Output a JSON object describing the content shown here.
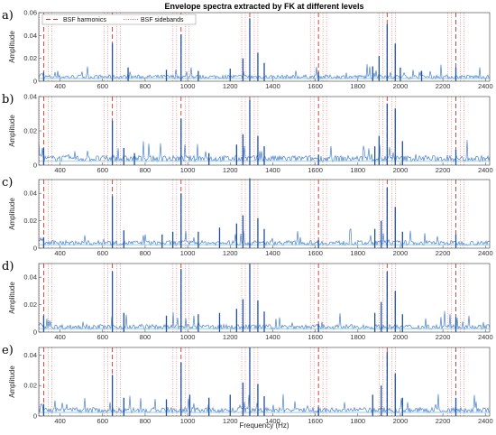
{
  "chart_data": {
    "type": "line",
    "title": "Envelope spectra extracted by FK at different levels",
    "xlabel": "Frequency (Hz)",
    "ylabel": "Amplitude",
    "xlim": [
      300,
      2420
    ],
    "x_ticks": [
      "400",
      "600",
      "800",
      "1000",
      "1200",
      "1400",
      "1600",
      "1800",
      "2000",
      "2200",
      "2400"
    ],
    "legend": {
      "placement": "top-left",
      "entries": [
        {
          "name": "BSF harmonics",
          "style": "dashed",
          "color": "#d73027"
        },
        {
          "name": "BSF sidebands",
          "style": "dotted",
          "color": "#d73027"
        }
      ]
    },
    "bsf_harmonics": [
      323,
      646,
      969,
      1292,
      1615,
      1938,
      2261
    ],
    "bsf_sidebands": [
      285,
      302,
      344,
      361,
      608,
      625,
      667,
      684,
      931,
      948,
      990,
      1007,
      1254,
      1271,
      1313,
      1330,
      1577,
      1594,
      1636,
      1653,
      1900,
      1917,
      1959,
      1976,
      2223,
      2240,
      2282,
      2299
    ],
    "spectrum_color": "#2b6cc4",
    "panels": [
      {
        "label": "a)",
        "ylim": [
          0,
          0.06
        ],
        "y_ticks": [
          "0",
          "0.02",
          "0.04",
          "0.06"
        ],
        "noise_floor": 0.004,
        "peaks": [
          [
            323,
            0.008
          ],
          [
            646,
            0.033
          ],
          [
            720,
            0.012
          ],
          [
            900,
            0.01
          ],
          [
            969,
            0.041
          ],
          [
            1050,
            0.009
          ],
          [
            1200,
            0.011
          ],
          [
            1260,
            0.02
          ],
          [
            1292,
            0.055
          ],
          [
            1330,
            0.025
          ],
          [
            1360,
            0.016
          ],
          [
            1615,
            0.008
          ],
          [
            1870,
            0.013
          ],
          [
            1900,
            0.022
          ],
          [
            1938,
            0.05
          ],
          [
            1976,
            0.033
          ],
          [
            2000,
            0.012
          ],
          [
            2100,
            0.009
          ],
          [
            2261,
            0.012
          ]
        ]
      },
      {
        "label": "b)",
        "ylim": [
          0,
          0.04
        ],
        "y_ticks": [
          "0",
          "0.02",
          "0.04"
        ],
        "noise_floor": 0.004,
        "peaks": [
          [
            323,
            0.01
          ],
          [
            646,
            0.026
          ],
          [
            700,
            0.01
          ],
          [
            750,
            0.007
          ],
          [
            969,
            0.027
          ],
          [
            1100,
            0.007
          ],
          [
            1230,
            0.012
          ],
          [
            1260,
            0.018
          ],
          [
            1292,
            0.038
          ],
          [
            1330,
            0.017
          ],
          [
            1360,
            0.011
          ],
          [
            1615,
            0.006
          ],
          [
            1880,
            0.011
          ],
          [
            1900,
            0.017
          ],
          [
            1938,
            0.036
          ],
          [
            1976,
            0.033
          ],
          [
            2010,
            0.014
          ],
          [
            2261,
            0.009
          ]
        ]
      },
      {
        "label": "c)",
        "ylim": [
          0,
          0.05
        ],
        "y_ticks": [
          "0",
          "0.02",
          "0.04"
        ],
        "noise_floor": 0.004,
        "peaks": [
          [
            323,
            0.008
          ],
          [
            646,
            0.038
          ],
          [
            700,
            0.013
          ],
          [
            880,
            0.01
          ],
          [
            930,
            0.012
          ],
          [
            969,
            0.04
          ],
          [
            1050,
            0.012
          ],
          [
            1150,
            0.015
          ],
          [
            1230,
            0.018
          ],
          [
            1260,
            0.024
          ],
          [
            1292,
            0.051
          ],
          [
            1330,
            0.022
          ],
          [
            1360,
            0.014
          ],
          [
            1615,
            0.006
          ],
          [
            1880,
            0.014
          ],
          [
            1910,
            0.02
          ],
          [
            1938,
            0.044
          ],
          [
            1976,
            0.03
          ],
          [
            2010,
            0.012
          ],
          [
            2261,
            0.01
          ]
        ]
      },
      {
        "label": "d)",
        "ylim": [
          0,
          0.05
        ],
        "y_ticks": [
          "0",
          "0.02",
          "0.04"
        ],
        "noise_floor": 0.004,
        "peaks": [
          [
            323,
            0.012
          ],
          [
            646,
            0.044
          ],
          [
            700,
            0.014
          ],
          [
            900,
            0.012
          ],
          [
            969,
            0.046
          ],
          [
            1050,
            0.013
          ],
          [
            1150,
            0.014
          ],
          [
            1230,
            0.017
          ],
          [
            1260,
            0.024
          ],
          [
            1292,
            0.05
          ],
          [
            1330,
            0.023
          ],
          [
            1360,
            0.015
          ],
          [
            1615,
            0.006
          ],
          [
            1880,
            0.014
          ],
          [
            1910,
            0.022
          ],
          [
            1938,
            0.044
          ],
          [
            1976,
            0.03
          ],
          [
            2010,
            0.013
          ],
          [
            2261,
            0.011
          ]
        ]
      },
      {
        "label": "e)",
        "ylim": [
          0,
          0.045
        ],
        "y_ticks": [
          "0",
          "0.02",
          "0.04"
        ],
        "noise_floor": 0.004,
        "peaks": [
          [
            323,
            0.008
          ],
          [
            646,
            0.027
          ],
          [
            700,
            0.012
          ],
          [
            900,
            0.011
          ],
          [
            969,
            0.035
          ],
          [
            1010,
            0.014
          ],
          [
            1100,
            0.012
          ],
          [
            1200,
            0.014
          ],
          [
            1260,
            0.022
          ],
          [
            1292,
            0.045
          ],
          [
            1330,
            0.021
          ],
          [
            1360,
            0.013
          ],
          [
            1615,
            0.006
          ],
          [
            1870,
            0.014
          ],
          [
            1910,
            0.02
          ],
          [
            1938,
            0.042
          ],
          [
            1976,
            0.028
          ],
          [
            2010,
            0.012
          ],
          [
            2261,
            0.012
          ]
        ]
      }
    ]
  }
}
